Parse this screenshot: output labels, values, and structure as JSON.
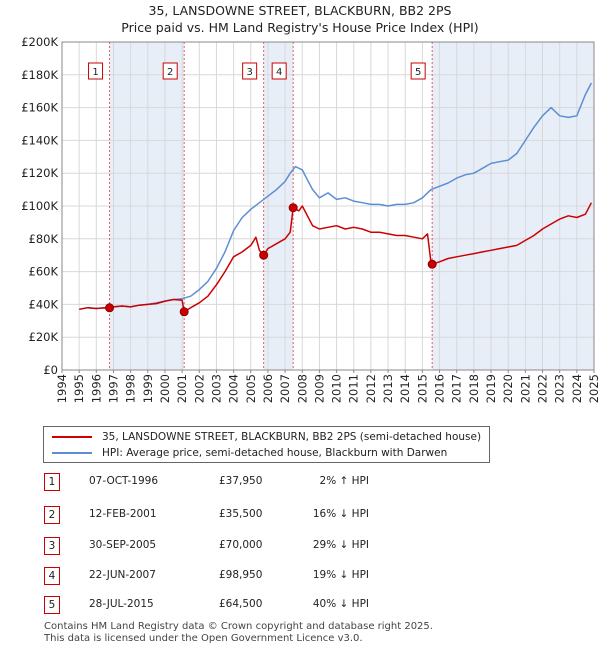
{
  "header": {
    "title": "35, LANSDOWNE STREET, BLACKBURN, BB2 2PS",
    "subtitle": "Price paid vs. HM Land Registry's House Price Index (HPI)"
  },
  "colors": {
    "property_line": "#cc0000",
    "hpi_line": "#5b8fd4",
    "shade": "#e8eef8",
    "marker_border": "#cc0000",
    "vline": "#e06060"
  },
  "chart_data": {
    "type": "line",
    "xlim": [
      1994,
      2025
    ],
    "ylim": [
      0,
      200000
    ],
    "x_ticks": [
      "1994",
      "1995",
      "1996",
      "1997",
      "1998",
      "1999",
      "2000",
      "2001",
      "2002",
      "2003",
      "2004",
      "2005",
      "2006",
      "2007",
      "2008",
      "2009",
      "2010",
      "2011",
      "2012",
      "2013",
      "2014",
      "2015",
      "2016",
      "2017",
      "2018",
      "2019",
      "2020",
      "2021",
      "2022",
      "2023",
      "2024",
      "2025"
    ],
    "y_ticks": [
      {
        "value": 0,
        "label": "£0"
      },
      {
        "value": 20000,
        "label": "£20K"
      },
      {
        "value": 40000,
        "label": "£40K"
      },
      {
        "value": 60000,
        "label": "£60K"
      },
      {
        "value": 80000,
        "label": "£80K"
      },
      {
        "value": 100000,
        "label": "£100K"
      },
      {
        "value": 120000,
        "label": "£120K"
      },
      {
        "value": 140000,
        "label": "£140K"
      },
      {
        "value": 160000,
        "label": "£160K"
      },
      {
        "value": 180000,
        "label": "£180K"
      },
      {
        "value": 200000,
        "label": "£200K"
      }
    ],
    "grid": true,
    "shaded_spans": [
      [
        1996.77,
        2001.12
      ],
      [
        2005.75,
        2007.47
      ],
      [
        2015.57,
        2025.0
      ]
    ],
    "sales": [
      {
        "label": "1",
        "x": 1996.77,
        "price": 37950
      },
      {
        "label": "2",
        "x": 2001.12,
        "price": 35500
      },
      {
        "label": "3",
        "x": 2005.75,
        "price": 70000
      },
      {
        "label": "4",
        "x": 2007.47,
        "price": 98950
      },
      {
        "label": "5",
        "x": 2015.57,
        "price": 64500
      }
    ],
    "series": [
      {
        "name": "35, LANSDOWNE STREET, BLACKBURN, BB2 2PS (semi-detached house)",
        "color": "#cc0000",
        "x": [
          1995.0,
          1995.5,
          1996.0,
          1996.5,
          1996.77,
          1997.0,
          1997.5,
          1998.0,
          1998.5,
          1999.0,
          1999.5,
          2000.0,
          2000.5,
          2001.0,
          2001.12,
          2001.5,
          2002.0,
          2002.5,
          2003.0,
          2003.5,
          2004.0,
          2004.5,
          2005.0,
          2005.3,
          2005.5,
          2005.75,
          2006.0,
          2006.5,
          2007.0,
          2007.3,
          2007.47,
          2007.8,
          2008.0,
          2008.3,
          2008.6,
          2009.0,
          2009.5,
          2010.0,
          2010.5,
          2011.0,
          2011.5,
          2012.0,
          2012.5,
          2013.0,
          2013.5,
          2014.0,
          2014.5,
          2015.0,
          2015.3,
          2015.5,
          2015.57,
          2016.0,
          2016.5,
          2017.0,
          2017.5,
          2018.0,
          2018.5,
          2019.0,
          2019.5,
          2020.0,
          2020.5,
          2021.0,
          2021.5,
          2022.0,
          2022.5,
          2023.0,
          2023.5,
          2024.0,
          2024.5,
          2024.85
        ],
        "values": [
          37000,
          38000,
          37500,
          38000,
          37950,
          38500,
          39000,
          38500,
          39500,
          40000,
          40500,
          42000,
          43000,
          42500,
          35500,
          38000,
          41000,
          45000,
          52000,
          60000,
          69000,
          72000,
          76000,
          81000,
          73000,
          70000,
          74000,
          77000,
          80000,
          84000,
          98950,
          97000,
          100000,
          94000,
          88000,
          86000,
          87000,
          88000,
          86000,
          87000,
          86000,
          84000,
          84000,
          83000,
          82000,
          82000,
          81000,
          80000,
          83000,
          65500,
          64500,
          66000,
          68000,
          69000,
          70000,
          71000,
          72000,
          73000,
          74000,
          75000,
          76000,
          79000,
          82000,
          86000,
          89000,
          92000,
          94000,
          93000,
          95000,
          102000
        ]
      },
      {
        "name": "HPI: Average price, semi-detached house, Blackburn with Darwen",
        "color": "#5b8fd4",
        "x": [
          1995.0,
          1995.5,
          1996.0,
          1996.5,
          1997.0,
          1997.5,
          1998.0,
          1998.5,
          1999.0,
          1999.5,
          2000.0,
          2000.5,
          2001.0,
          2001.5,
          2002.0,
          2002.5,
          2003.0,
          2003.5,
          2004.0,
          2004.5,
          2005.0,
          2005.5,
          2006.0,
          2006.5,
          2007.0,
          2007.3,
          2007.6,
          2008.0,
          2008.3,
          2008.6,
          2009.0,
          2009.5,
          2010.0,
          2010.5,
          2011.0,
          2011.5,
          2012.0,
          2012.5,
          2013.0,
          2013.5,
          2014.0,
          2014.5,
          2015.0,
          2015.5,
          2016.0,
          2016.5,
          2017.0,
          2017.5,
          2018.0,
          2018.5,
          2019.0,
          2019.5,
          2020.0,
          2020.5,
          2021.0,
          2021.5,
          2022.0,
          2022.5,
          2023.0,
          2023.5,
          2024.0,
          2024.5,
          2024.85
        ],
        "values": [
          37000,
          38000,
          37500,
          37800,
          38500,
          39000,
          38500,
          39500,
          40000,
          41000,
          42000,
          43000,
          43500,
          45000,
          49000,
          54000,
          62000,
          72000,
          85000,
          93000,
          98000,
          102000,
          106000,
          110000,
          115000,
          120000,
          124000,
          122000,
          116000,
          110000,
          105000,
          108000,
          104000,
          105000,
          103000,
          102000,
          101000,
          101000,
          100000,
          101000,
          101000,
          102000,
          105000,
          110000,
          112000,
          114000,
          117000,
          119000,
          120000,
          123000,
          126000,
          127000,
          128000,
          132000,
          140000,
          148000,
          155000,
          160000,
          155000,
          154000,
          155000,
          168000,
          175000
        ]
      }
    ]
  },
  "legend": {
    "items": [
      {
        "label": "35, LANSDOWNE STREET, BLACKBURN, BB2 2PS (semi-detached house)",
        "color": "#cc0000"
      },
      {
        "label": "HPI: Average price, semi-detached house, Blackburn with Darwen",
        "color": "#5b8fd4"
      }
    ]
  },
  "transactions": [
    {
      "num": "1",
      "date": "07-OCT-1996",
      "price": "£37,950",
      "hpi": "2% ↑ HPI"
    },
    {
      "num": "2",
      "date": "12-FEB-2001",
      "price": "£35,500",
      "hpi": "16% ↓ HPI"
    },
    {
      "num": "3",
      "date": "30-SEP-2005",
      "price": "£70,000",
      "hpi": "29% ↓ HPI"
    },
    {
      "num": "4",
      "date": "22-JUN-2007",
      "price": "£98,950",
      "hpi": "19% ↓ HPI"
    },
    {
      "num": "5",
      "date": "28-JUL-2015",
      "price": "£64,500",
      "hpi": "40% ↓ HPI"
    }
  ],
  "footer": {
    "line1": "Contains HM Land Registry data © Crown copyright and database right 2025.",
    "line2": "This data is licensed under the Open Government Licence v3.0."
  }
}
